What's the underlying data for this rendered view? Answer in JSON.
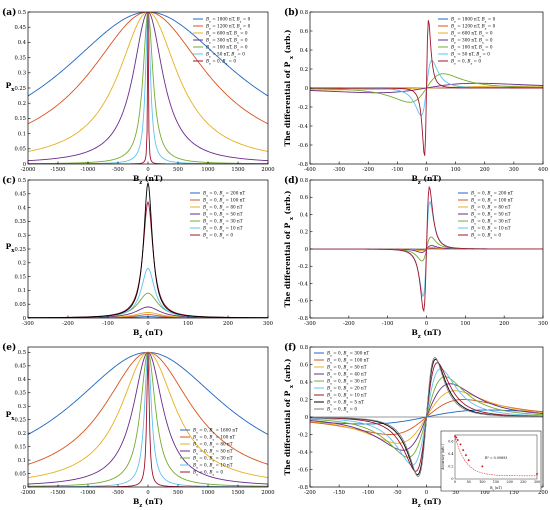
{
  "figure": {
    "panels": [
      "(a)",
      "(b)",
      "(c)",
      "(d)",
      "(e)",
      "(f)"
    ]
  },
  "colors": [
    "#2166c0",
    "#d9531e",
    "#e6b020",
    "#6a2c8e",
    "#74ac30",
    "#5ec4ee",
    "#a2142f",
    "#000000",
    "#7f7f7f",
    "#b05a24"
  ],
  "chart_data": [
    {
      "panel": "(a)",
      "type": "line",
      "ylabel": "P",
      "ylabel_sub": "x",
      "xlabel": "B",
      "xlabel_sub": "z",
      "xlabel_unit": "(nT)",
      "xlim": [
        -2000,
        2000
      ],
      "ylim": [
        0,
        0.5
      ],
      "xticks": [
        -2000,
        -1500,
        -1000,
        -500,
        0,
        500,
        1000,
        1500,
        2000
      ],
      "yticks": [
        0,
        0.05,
        0.1,
        0.15,
        0.2,
        0.25,
        0.3,
        0.35,
        0.4,
        0.45,
        0.5
      ],
      "series": [
        {
          "name": "B_y = 1800 nT, B_x = 0",
          "w": 1800,
          "s": 0.5
        },
        {
          "name": "B_y = 1200 nT, B_x = 0",
          "w": 1200,
          "s": 0.5
        },
        {
          "name": "B_y = 600 nT, B_x = 0",
          "w": 600,
          "s": 0.5
        },
        {
          "name": "B_y = 300 nT, B_x = 0",
          "w": 300,
          "s": 0.5
        },
        {
          "name": "B_y = 100 nT, B_x = 0",
          "w": 100,
          "s": 0.5
        },
        {
          "name": "B_y = 50 nT, B_x = 0",
          "w": 50,
          "s": 0.5
        },
        {
          "name": "B_y = 0, B_x = 0",
          "w": 8,
          "s": 0.5
        }
      ]
    },
    {
      "panel": "(b)",
      "type": "line",
      "ylabel": "The differential of P",
      "ylabel_sub": "x",
      "ylabel_unit": "(arb.)",
      "xlabel": "B",
      "xlabel_sub": "z",
      "xlabel_unit": "(nT)",
      "xlim": [
        -400,
        400
      ],
      "ylim": [
        -0.8,
        0.8
      ],
      "xticks": [
        -400,
        -300,
        -200,
        -100,
        0,
        100,
        200,
        300,
        400
      ],
      "yticks": [
        -0.8,
        -0.6,
        -0.4,
        -0.2,
        0,
        0.2,
        0.4,
        0.6,
        0.8
      ],
      "series": [
        {
          "name": "B_y = 1800 nT, B_x = 0",
          "w": 1800,
          "peak": 0.005
        },
        {
          "name": "B_y = 1200 nT, B_x = 0",
          "w": 1200,
          "peak": 0.008
        },
        {
          "name": "B_y = 600 nT, B_x = 0",
          "w": 600,
          "peak": 0.02
        },
        {
          "name": "B_y = 300 nT, B_x = 0",
          "w": 300,
          "peak": 0.05
        },
        {
          "name": "B_y = 100 nT, B_x = 0",
          "w": 100,
          "peak": 0.15
        },
        {
          "name": "B_y = 50 nT, B_x = 0",
          "w": 32,
          "peak": 0.29
        },
        {
          "name": "B_y = 0, B_x = 0",
          "w": 12,
          "peak": 0.72
        }
      ]
    },
    {
      "panel": "(c)",
      "type": "line",
      "ylabel": "P",
      "ylabel_sub": "x",
      "xlabel": "B",
      "xlabel_sub": "z",
      "xlabel_unit": "(nT)",
      "xlim": [
        -300,
        300
      ],
      "ylim": [
        0,
        0.5
      ],
      "xticks": [
        -300,
        -200,
        -100,
        0,
        100,
        200,
        300
      ],
      "yticks": [
        0,
        0.05,
        0.1,
        0.15,
        0.2,
        0.25,
        0.3,
        0.35,
        0.4,
        0.45,
        0.5
      ],
      "series": [
        {
          "name": "B_x = 0, B_y = 200 nT",
          "w": 40,
          "s": 0.005
        },
        {
          "name": "B_x = 0, B_y = 100 nT",
          "w": 40,
          "s": 0.012
        },
        {
          "name": "B_x = 0, B_y = 80 nT",
          "w": 38,
          "s": 0.02
        },
        {
          "name": "B_x = 0, B_y = 50 nT",
          "w": 36,
          "s": 0.04
        },
        {
          "name": "B_x = 0, B_y = 30 nT",
          "w": 30,
          "s": 0.09
        },
        {
          "name": "B_x = 0, B_y = 10 nT",
          "w": 20,
          "s": 0.18
        },
        {
          "name": "B_x = 0, B_y = 0",
          "w": 15,
          "s": 0.42
        },
        {
          "name": "",
          "w": 13,
          "s": 0.49
        }
      ]
    },
    {
      "panel": "(d)",
      "type": "line",
      "ylabel": "The differential of P",
      "ylabel_sub": "x",
      "ylabel_unit": "(arb.)",
      "xlabel": "B",
      "xlabel_sub": "z",
      "xlabel_unit": "(nT)",
      "xlim": [
        -300,
        300
      ],
      "ylim": [
        -0.8,
        0.8
      ],
      "xticks": [
        -300,
        -200,
        -100,
        0,
        100,
        200,
        300
      ],
      "yticks": [
        -0.8,
        -0.6,
        -0.4,
        -0.2,
        0,
        0.2,
        0.4,
        0.6,
        0.8
      ],
      "series": [
        {
          "name": "B_x = 0, B_y = 200 nT",
          "w": 25,
          "peak": 0.005
        },
        {
          "name": "B_x = 0, B_y = 100 nT",
          "w": 25,
          "peak": 0.01
        },
        {
          "name": "B_x = 0, B_y = 80 nT",
          "w": 24,
          "peak": 0.02
        },
        {
          "name": "B_x = 0, B_y = 50 nT",
          "w": 22,
          "peak": 0.04
        },
        {
          "name": "B_x = 0, B_y = 30 nT",
          "w": 20,
          "peak": 0.14
        },
        {
          "name": "B_x = 0, B_y = 10 nT",
          "w": 15,
          "peak": 0.55
        },
        {
          "name": "B_x = 0, B_y = 0",
          "w": 13,
          "peak": 0.72
        }
      ]
    },
    {
      "panel": "(e)",
      "type": "line",
      "ylabel": "P",
      "ylabel_sub": "x",
      "xlabel": "B",
      "xlabel_sub": "z",
      "xlabel_unit": "(nT)",
      "xlim": [
        -2000,
        2000
      ],
      "ylim": [
        0,
        0.52
      ],
      "xticks": [
        -2000,
        -1500,
        -1000,
        -500,
        0,
        500,
        1000,
        1500,
        2000
      ],
      "yticks": [
        0,
        0.05,
        0.1,
        0.15,
        0.2,
        0.25,
        0.3,
        0.35,
        0.4,
        0.45,
        0.5
      ],
      "series": [
        {
          "name": "B_x = 0, B_y = 1600 nT",
          "w": 1600,
          "s": 0.5
        },
        {
          "name": "B_x = 0, B_y = 100 nT",
          "w": 900,
          "s": 0.5
        },
        {
          "name": "B_x = 0, B_y = 80 nT",
          "w": 550,
          "s": 0.5
        },
        {
          "name": "B_x = 0, B_y = 50 nT",
          "w": 300,
          "s": 0.5
        },
        {
          "name": "B_x = 0, B_y = 30 nT",
          "w": 150,
          "s": 0.5
        },
        {
          "name": "B_x = 0, B_y = 10 nT",
          "w": 70,
          "s": 0.5
        },
        {
          "name": "B_x = 0, B_y = 0",
          "w": 25,
          "s": 0.5
        }
      ]
    },
    {
      "panel": "(f)",
      "type": "line",
      "ylabel": "The differential of P",
      "ylabel_sub": "x",
      "ylabel_unit": "(arb.)",
      "xlabel": "B",
      "xlabel_sub": "z",
      "xlabel_unit": "(nT)",
      "xlim": [
        -200,
        200
      ],
      "ylim": [
        -0.8,
        0.8
      ],
      "xticks": [
        -200,
        -150,
        -100,
        -50,
        0,
        50,
        100,
        150,
        200
      ],
      "yticks": [
        -0.8,
        -0.6,
        -0.4,
        -0.2,
        0,
        0.2,
        0.4,
        0.6,
        0.8
      ],
      "series": [
        {
          "name": "B_x = 0, B_y = 300 nT",
          "w": 180,
          "peak": 0.08
        },
        {
          "name": "B_x = 0, B_y = 100 nT",
          "w": 110,
          "peak": 0.2
        },
        {
          "name": "B_x = 0, B_y = 50 nT",
          "w": 85,
          "peak": 0.3
        },
        {
          "name": "B_x = 0, B_y = 40 nT",
          "w": 70,
          "peak": 0.38
        },
        {
          "name": "B_x = 0, B_y = 30 nT",
          "w": 55,
          "peak": 0.46
        },
        {
          "name": "B_x = 0, B_y = 20 nT",
          "w": 42,
          "peak": 0.55
        },
        {
          "name": "B_x = 0, B_y = 10 nT",
          "w": 32,
          "peak": 0.62
        },
        {
          "name": "B_x = 0, B_y = 5 nT",
          "w": 27,
          "peak": 0.66
        },
        {
          "name": "B_x = 0, B_y = 0",
          "w": 25,
          "peak": 0.68
        }
      ],
      "inset": {
        "ylabel": "Accuracy (arb.)",
        "xlabel": "B",
        "xlabel_sub": "y",
        "xlabel_unit": "(nT)",
        "xticks": [
          0,
          50,
          100,
          150,
          200,
          250,
          300
        ],
        "yticks": [
          0,
          0.2,
          0.4,
          0.6
        ],
        "fit": "R² = 0.99893",
        "points": [
          [
            0,
            0.68
          ],
          [
            5,
            0.66
          ],
          [
            10,
            0.62
          ],
          [
            20,
            0.55
          ],
          [
            30,
            0.46
          ],
          [
            40,
            0.38
          ],
          [
            50,
            0.3
          ],
          [
            100,
            0.2
          ],
          [
            300,
            0.08
          ]
        ]
      }
    }
  ]
}
